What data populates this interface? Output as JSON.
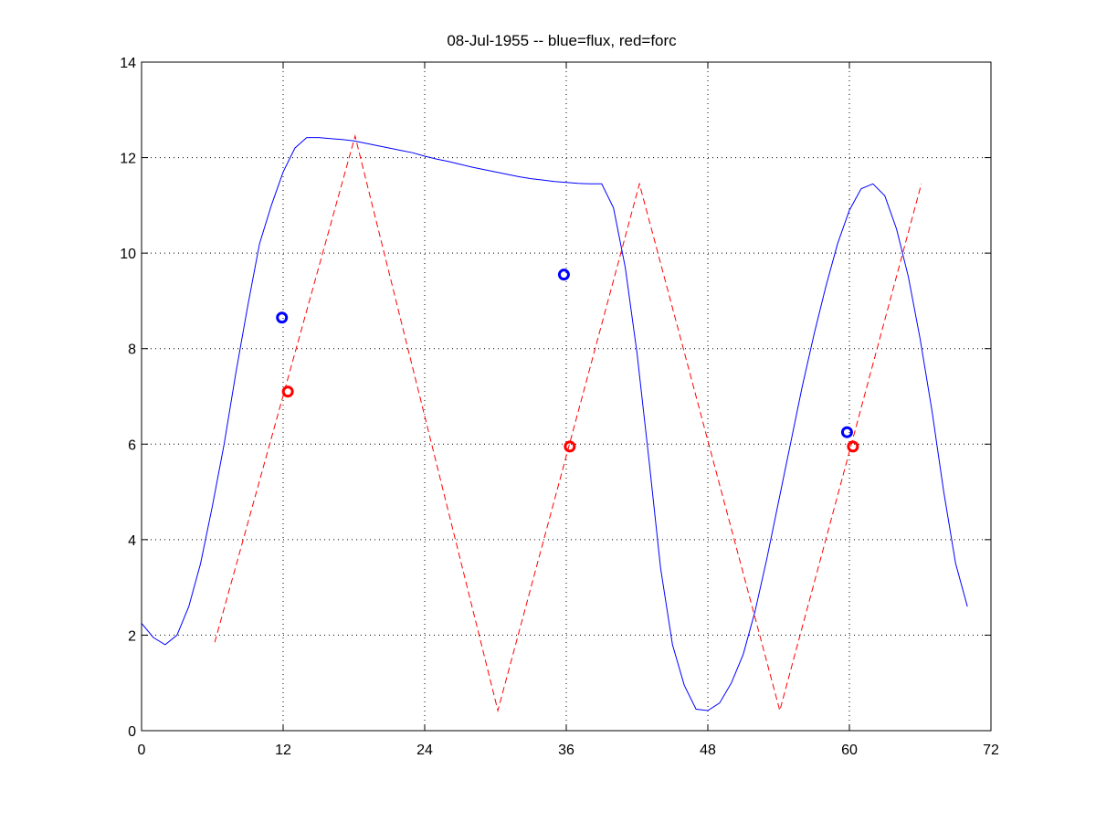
{
  "chart_data": {
    "type": "line",
    "title": "08-Jul-1955 -- blue=flux, red=forc",
    "xlabel": "",
    "ylabel": "",
    "xlim": [
      0,
      72
    ],
    "ylim": [
      0,
      14
    ],
    "x_ticks": [
      0,
      12,
      24,
      36,
      48,
      60,
      72
    ],
    "y_ticks": [
      0,
      2,
      4,
      6,
      8,
      10,
      12,
      14
    ],
    "grid": true,
    "series": [
      {
        "color": "#0000ff",
        "style": "solid",
        "points": [
          [
            0,
            2.25
          ],
          [
            1,
            1.95
          ],
          [
            2,
            1.8
          ],
          [
            3,
            2.0
          ],
          [
            4,
            2.6
          ],
          [
            5,
            3.5
          ],
          [
            6,
            4.7
          ],
          [
            7,
            6.0
          ],
          [
            8,
            7.5
          ],
          [
            9,
            8.9
          ],
          [
            10,
            10.2
          ],
          [
            11,
            11.0
          ],
          [
            12,
            11.7
          ],
          [
            13,
            12.2
          ],
          [
            14,
            12.42
          ],
          [
            15,
            12.42
          ],
          [
            16,
            12.4
          ],
          [
            17,
            12.38
          ],
          [
            18,
            12.35
          ],
          [
            19,
            12.3
          ],
          [
            20,
            12.25
          ],
          [
            21,
            12.2
          ],
          [
            22,
            12.15
          ],
          [
            23,
            12.1
          ],
          [
            24,
            12.03
          ],
          [
            25,
            11.97
          ],
          [
            26,
            11.92
          ],
          [
            27,
            11.86
          ],
          [
            28,
            11.8
          ],
          [
            29,
            11.75
          ],
          [
            30,
            11.7
          ],
          [
            31,
            11.65
          ],
          [
            32,
            11.6
          ],
          [
            33,
            11.56
          ],
          [
            34,
            11.53
          ],
          [
            35,
            11.5
          ],
          [
            36,
            11.48
          ],
          [
            37,
            11.46
          ],
          [
            38,
            11.45
          ],
          [
            39,
            11.45
          ],
          [
            40,
            10.95
          ],
          [
            41,
            9.7
          ],
          [
            42,
            7.9
          ],
          [
            43,
            5.7
          ],
          [
            44,
            3.4
          ],
          [
            45,
            1.8
          ],
          [
            46,
            0.95
          ],
          [
            47,
            0.45
          ],
          [
            48,
            0.42
          ],
          [
            49,
            0.58
          ],
          [
            50,
            1.0
          ],
          [
            51,
            1.6
          ],
          [
            52,
            2.5
          ],
          [
            53,
            3.6
          ],
          [
            54,
            4.8
          ],
          [
            55,
            6.0
          ],
          [
            56,
            7.2
          ],
          [
            57,
            8.3
          ],
          [
            58,
            9.3
          ],
          [
            59,
            10.2
          ],
          [
            60,
            10.9
          ],
          [
            61,
            11.35
          ],
          [
            62,
            11.45
          ],
          [
            63,
            11.2
          ],
          [
            64,
            10.5
          ],
          [
            65,
            9.5
          ],
          [
            66,
            8.2
          ],
          [
            67,
            6.7
          ],
          [
            68,
            5.0
          ],
          [
            69,
            3.5
          ],
          [
            70,
            2.6
          ]
        ]
      },
      {
        "color": "#ff0000",
        "style": "dashed",
        "points": [
          [
            6.2,
            1.85
          ],
          [
            18.1,
            12.45
          ],
          [
            30.2,
            0.42
          ],
          [
            42.2,
            11.45
          ],
          [
            54.1,
            0.42
          ],
          [
            66.1,
            11.45
          ]
        ]
      }
    ],
    "markers": [
      {
        "color": "#0000ff",
        "x": 11.9,
        "y": 8.65
      },
      {
        "color": "#0000ff",
        "x": 35.8,
        "y": 9.55
      },
      {
        "color": "#0000ff",
        "x": 59.8,
        "y": 6.25
      },
      {
        "color": "#ff0000",
        "x": 12.4,
        "y": 7.1
      },
      {
        "color": "#ff0000",
        "x": 36.3,
        "y": 5.95
      },
      {
        "color": "#ff0000",
        "x": 60.3,
        "y": 5.95
      }
    ]
  }
}
